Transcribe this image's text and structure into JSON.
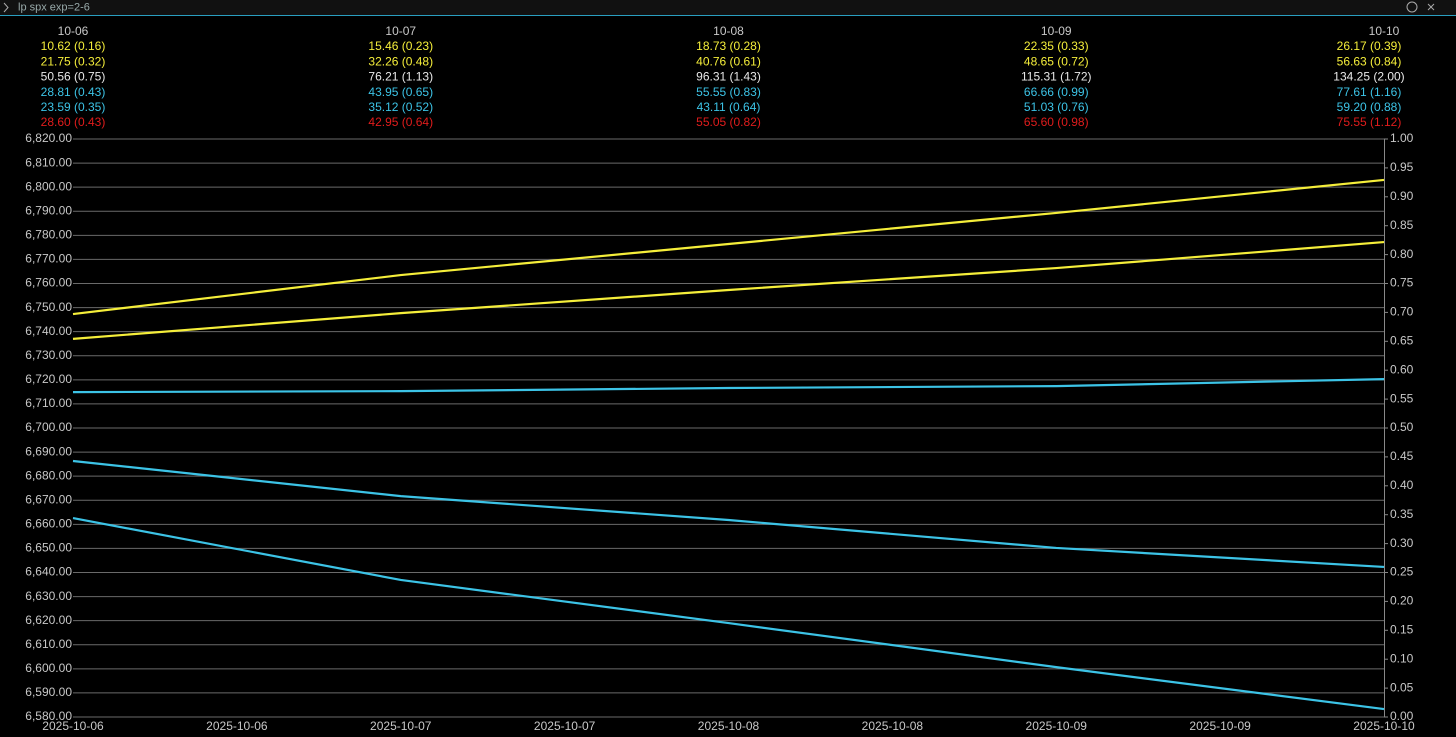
{
  "app_bar": {
    "title": "lp spx exp=2-6"
  },
  "table": {
    "dates": [
      "10-06",
      "10-07",
      "10-08",
      "10-09",
      "10-10"
    ],
    "rows": [
      {
        "color": "#f5ee3a",
        "cells": [
          "10.62 (0.16)",
          "15.46 (0.23)",
          "18.73 (0.28)",
          "22.35 (0.33)",
          "26.17 (0.39)"
        ]
      },
      {
        "color": "#f5ee3a",
        "cells": [
          "21.75 (0.32)",
          "32.26 (0.48)",
          "40.76 (0.61)",
          "48.65 (0.72)",
          "56.63 (0.84)"
        ]
      },
      {
        "color": "#e8e8e8",
        "cells": [
          "50.56 (0.75)",
          "76.21 (1.13)",
          "96.31 (1.43)",
          "115.31 (1.72)",
          "134.25 (2.00)"
        ]
      },
      {
        "color": "#3cc3e6",
        "cells": [
          "28.81 (0.43)",
          "43.95 (0.65)",
          "55.55 (0.83)",
          "66.66 (0.99)",
          "77.61 (1.16)"
        ]
      },
      {
        "color": "#3cc3e6",
        "cells": [
          "23.59 (0.35)",
          "35.12 (0.52)",
          "43.11 (0.64)",
          "51.03 (0.76)",
          "59.20 (0.88)"
        ]
      },
      {
        "color": "#e01c1c",
        "cells": [
          "28.60 (0.43)",
          "42.95 (0.64)",
          "55.05 (0.82)",
          "65.60 (0.98)",
          "75.55 (1.12)"
        ]
      }
    ]
  },
  "chart_data": {
    "type": "line",
    "x": [
      "2025-10-06",
      "2025-10-07",
      "2025-10-08",
      "2025-10-09",
      "2025-10-10"
    ],
    "xtick_labels": [
      "2025-10-06",
      "2025-10-06",
      "2025-10-07",
      "2025-10-07",
      "2025-10-08",
      "2025-10-08",
      "2025-10-09",
      "2025-10-09",
      "2025-10-10"
    ],
    "series": [
      {
        "color": "#f5ee3a",
        "values": [
          6747.3,
          6763.5,
          6776.4,
          6789.3,
          6803
        ]
      },
      {
        "color": "#f5ee3a",
        "values": [
          6737,
          6747.7,
          6757.3,
          6766.4,
          6777.2
        ]
      },
      {
        "color": "#3cc3e6",
        "values": [
          6714.9,
          6715.3,
          6716.6,
          6717.4,
          6720.3
        ]
      },
      {
        "color": "#3cc3e6",
        "values": [
          6686.3,
          6671.7,
          6661.8,
          6650.2,
          6642.3
        ]
      },
      {
        "color": "#3cc3e6",
        "values": [
          6662.6,
          6636.9,
          6619,
          6600.7,
          6583.3
        ]
      }
    ],
    "ylim": [
      6580,
      6820
    ],
    "yticks": [
      {
        "value": 6580,
        "label": "6,580.00"
      },
      {
        "value": 6590,
        "label": "6,590.00"
      },
      {
        "value": 6600,
        "label": "6,600.00"
      },
      {
        "value": 6610,
        "label": "6,610.00"
      },
      {
        "value": 6620,
        "label": "6,620.00"
      },
      {
        "value": 6630,
        "label": "6,630.00"
      },
      {
        "value": 6640,
        "label": "6,640.00"
      },
      {
        "value": 6650,
        "label": "6,650.00"
      },
      {
        "value": 6660,
        "label": "6,660.00"
      },
      {
        "value": 6670,
        "label": "6,670.00"
      },
      {
        "value": 6680,
        "label": "6,680.00"
      },
      {
        "value": 6690,
        "label": "6,690.00"
      },
      {
        "value": 6700,
        "label": "6,700.00"
      },
      {
        "value": 6710,
        "label": "6,710.00"
      },
      {
        "value": 6720,
        "label": "6,720.00"
      },
      {
        "value": 6730,
        "label": "6,730.00"
      },
      {
        "value": 6740,
        "label": "6,740.00"
      },
      {
        "value": 6750,
        "label": "6,750.00"
      },
      {
        "value": 6760,
        "label": "6,760.00"
      },
      {
        "value": 6770,
        "label": "6,770.00"
      },
      {
        "value": 6780,
        "label": "6,780.00"
      },
      {
        "value": 6790,
        "label": "6,790.00"
      },
      {
        "value": 6800,
        "label": "6,800.00"
      },
      {
        "value": 6810,
        "label": "6,810.00"
      },
      {
        "value": 6820,
        "label": "6,820.00"
      }
    ],
    "y2lim": [
      0,
      1
    ],
    "y2ticks": [
      {
        "value": 0,
        "label": "0.00"
      },
      {
        "value": 0.05,
        "label": "0.05"
      },
      {
        "value": 0.1,
        "label": "0.10"
      },
      {
        "value": 0.15,
        "label": "0.15"
      },
      {
        "value": 0.2,
        "label": "0.20"
      },
      {
        "value": 0.25,
        "label": "0.25"
      },
      {
        "value": 0.3,
        "label": "0.30"
      },
      {
        "value": 0.35,
        "label": "0.35"
      },
      {
        "value": 0.4,
        "label": "0.40"
      },
      {
        "value": 0.45,
        "label": "0.45"
      },
      {
        "value": 0.5,
        "label": "0.50"
      },
      {
        "value": 0.55,
        "label": "0.55"
      },
      {
        "value": 0.6,
        "label": "0.60"
      },
      {
        "value": 0.65,
        "label": "0.65"
      },
      {
        "value": 0.7,
        "label": "0.70"
      },
      {
        "value": 0.75,
        "label": "0.75"
      },
      {
        "value": 0.8,
        "label": "0.80"
      },
      {
        "value": 0.85,
        "label": "0.85"
      },
      {
        "value": 0.9,
        "label": "0.90"
      },
      {
        "value": 0.95,
        "label": "0.95"
      },
      {
        "value": 1,
        "label": "1.00"
      }
    ],
    "grid": true
  }
}
